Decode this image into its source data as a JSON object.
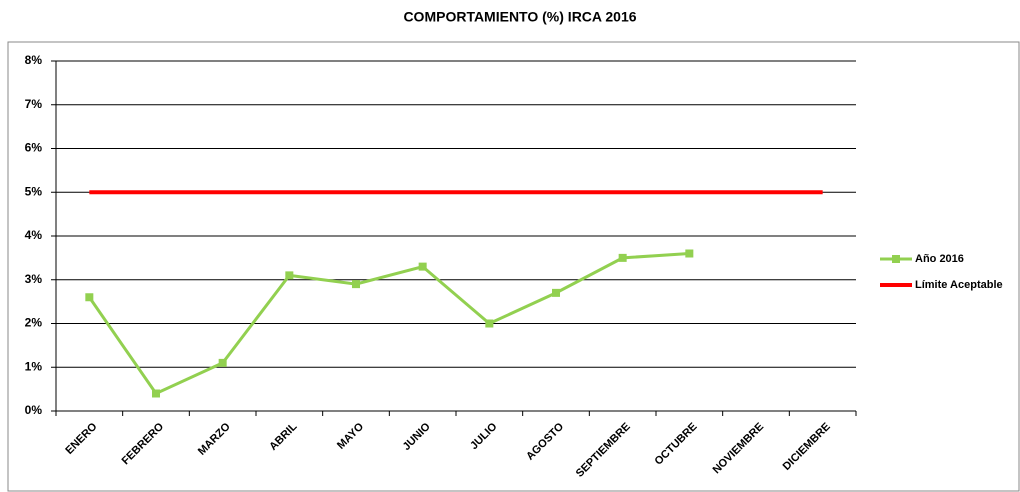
{
  "chart_data": {
    "type": "line",
    "title": "COMPORTAMIENTO (%) IRCA 2016",
    "categories": [
      "ENERO",
      "FEBRERO",
      "MARZO",
      "ABRIL",
      "MAYO",
      "JUNIO",
      "JULIO",
      "AGOSTO",
      "SEPTIEMBRE",
      "OCTUBRE",
      "NOVIEMBRE",
      "DICIEMBRE"
    ],
    "series": [
      {
        "name": "Año 2016",
        "color": "#92d050",
        "values": [
          2.6,
          0.4,
          1.1,
          3.1,
          2.9,
          3.3,
          2.0,
          2.7,
          3.5,
          3.6,
          null,
          null
        ]
      },
      {
        "name": "Límite Aceptable",
        "color": "#ff0000",
        "values": [
          5,
          5,
          5,
          5,
          5,
          5,
          5,
          5,
          5,
          5,
          5,
          5
        ]
      }
    ],
    "ylim": [
      0,
      8
    ],
    "yticks": [
      {
        "value": 0,
        "label": "0%"
      },
      {
        "value": 1,
        "label": "1%"
      },
      {
        "value": 2,
        "label": "2%"
      },
      {
        "value": 3,
        "label": "3%"
      },
      {
        "value": 4,
        "label": "4%"
      },
      {
        "value": 5,
        "label": "5%"
      },
      {
        "value": 6,
        "label": "6%"
      },
      {
        "value": 7,
        "label": "7%"
      },
      {
        "value": 8,
        "label": "8%"
      }
    ],
    "grid": true,
    "legend": "right"
  }
}
